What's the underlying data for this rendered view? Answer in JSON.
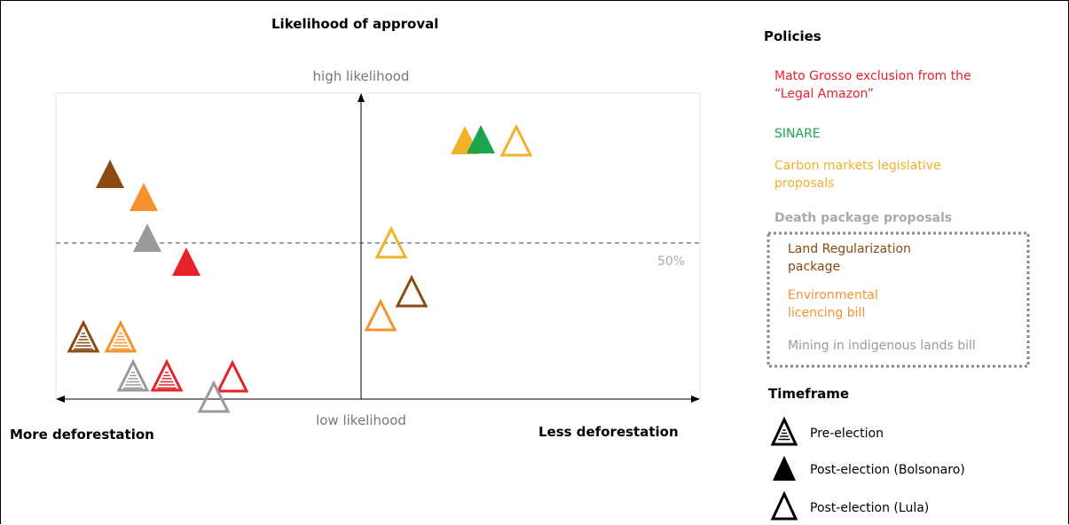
{
  "title": "Likelihood of approval",
  "y_axis": {
    "top": "high likelihood",
    "bottom": "low likelihood",
    "midline": "50%"
  },
  "x_axis": {
    "left": "More deforestation",
    "right": "Less deforestation"
  },
  "legend": {
    "policies_title": "Policies",
    "policies": [
      {
        "label": "Mato Grosso exclusion from the “Legal Amazon”",
        "color": "#e8222a"
      },
      {
        "label": "SINARE",
        "color": "#1aa550"
      },
      {
        "label": "Carbon markets legislative proposals",
        "color": "#f2b12a"
      }
    ],
    "group_title": "Death package proposals",
    "group": [
      {
        "label": "Land Regularization package",
        "color": "#8b4a12"
      },
      {
        "label": "Environmental licencing bill",
        "color": "#f7932f"
      },
      {
        "label": "Mining in indigenous lands bill",
        "color": "#9a9a9a"
      }
    ],
    "timeframe_title": "Timeframe",
    "timeframes": [
      "Pre-election",
      "Post-election (Bolsonaro)",
      "Post-election (Lula)"
    ]
  }
}
